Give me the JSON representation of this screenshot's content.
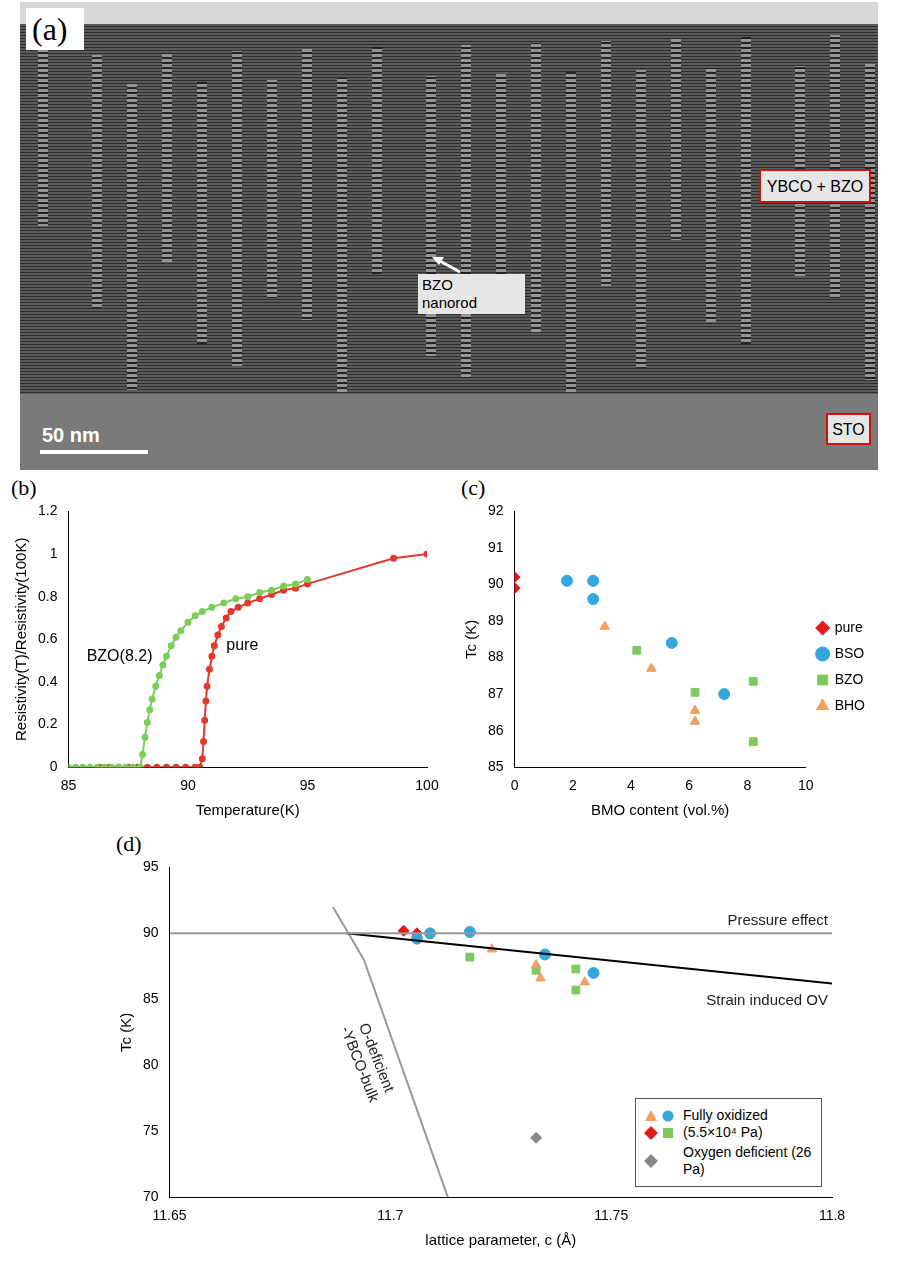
{
  "image_panel": {
    "title": "(a)",
    "film_label": "YBCO + BZO",
    "substrate_label": "STO",
    "arrow_label": "BZO nanorod",
    "scale_bar": "50 nm"
  },
  "chart_data": [
    {
      "type": "line",
      "title": "(b)",
      "x_label": "Temperature(K)",
      "y_label": "Resistivity(T)/Resistivity(100K)",
      "xlim": [
        85,
        100
      ],
      "xticks": [
        85,
        90,
        95,
        100
      ],
      "ylim": [
        0,
        1.2
      ],
      "yticks": [
        0,
        0.2,
        0.4,
        0.6,
        0.8,
        1,
        1.2
      ],
      "grid": false,
      "marker": "circle",
      "series": [
        {
          "name": "BZO(8.2)",
          "color": "#7ccd5c",
          "x": [
            85,
            85.3,
            85.6,
            85.9,
            86.2,
            86.5,
            86.8,
            87.1,
            87.4,
            87.7,
            88.0,
            88.1,
            88.2,
            88.3,
            88.4,
            88.5,
            88.65,
            88.8,
            88.95,
            89.1,
            89.3,
            89.5,
            89.7,
            90,
            90.3,
            90.6,
            91,
            91.5,
            92,
            92.5,
            93,
            93.5,
            94,
            94.5,
            95
          ],
          "values": [
            0,
            0,
            0,
            0,
            0,
            0,
            0,
            0,
            0,
            0,
            0,
            0.06,
            0.14,
            0.21,
            0.27,
            0.32,
            0.38,
            0.43,
            0.48,
            0.52,
            0.57,
            0.61,
            0.64,
            0.68,
            0.71,
            0.73,
            0.75,
            0.77,
            0.79,
            0.8,
            0.82,
            0.83,
            0.85,
            0.86,
            0.88
          ]
        },
        {
          "name": "pure",
          "color": "#e0392d",
          "x": [
            86.3,
            86.7,
            87.1,
            87.5,
            87.9,
            88.3,
            88.7,
            89.1,
            89.5,
            89.9,
            90.3,
            90.5,
            90.6,
            90.65,
            90.7,
            90.75,
            90.8,
            90.9,
            91.0,
            91.1,
            91.25,
            91.4,
            91.6,
            91.8,
            92.1,
            92.5,
            93,
            93.5,
            94,
            94.5,
            95,
            98.6,
            100
          ],
          "values": [
            0,
            0,
            0,
            0,
            0,
            0,
            0,
            0,
            0,
            0,
            0,
            0,
            0.04,
            0.12,
            0.22,
            0.31,
            0.38,
            0.46,
            0.52,
            0.57,
            0.62,
            0.66,
            0.7,
            0.73,
            0.75,
            0.77,
            0.79,
            0.81,
            0.83,
            0.84,
            0.86,
            0.98,
            1
          ]
        }
      ]
    },
    {
      "type": "scatter",
      "title": "(c)",
      "x_label": "BMO content (vol.%)",
      "y_label": "Tc (K)",
      "xlim": [
        0,
        10
      ],
      "xticks": [
        0,
        2,
        4,
        6,
        8,
        10
      ],
      "ylim": [
        85,
        92
      ],
      "yticks": [
        85,
        86,
        87,
        88,
        89,
        90,
        91,
        92
      ],
      "grid": false,
      "legend": "right",
      "series": [
        {
          "name": "pure",
          "color": "#e31a1c",
          "marker": "diamond",
          "x": [
            0,
            0
          ],
          "values": [
            90.2,
            89.9
          ]
        },
        {
          "name": "BSO",
          "color": "#35a7dd",
          "marker": "circle",
          "x": [
            1.8,
            2.7,
            2.7,
            5.4,
            7.2
          ],
          "values": [
            90.1,
            90.1,
            89.6,
            88.4,
            87.0
          ]
        },
        {
          "name": "BZO",
          "color": "#7dc95e",
          "marker": "square",
          "x": [
            4.2,
            6.2,
            8.2,
            8.2
          ],
          "values": [
            88.2,
            87.05,
            87.35,
            85.7
          ]
        },
        {
          "name": "BHO",
          "color": "#f0a060",
          "marker": "triangle",
          "x": [
            3.1,
            4.7,
            6.2,
            6.2
          ],
          "values": [
            88.85,
            87.7,
            86.55,
            86.25
          ]
        }
      ]
    },
    {
      "type": "scatter",
      "title": "(d)",
      "x_label": "lattice parameter, c (Å)",
      "y_label": "Tc (K)",
      "xlim": [
        11.65,
        11.8
      ],
      "xticks": [
        11.65,
        11.7,
        11.75,
        11.8
      ],
      "ylim": [
        70,
        95
      ],
      "yticks": [
        70,
        75,
        80,
        85,
        90,
        95
      ],
      "grid": false,
      "legend": "lower right",
      "series": [
        {
          "name": "Pressure effect",
          "type": "line",
          "color": "#999999",
          "line_style": "solid",
          "x": [
            11.65,
            11.8
          ],
          "values": [
            90,
            90
          ]
        },
        {
          "name": "Strain induced OV",
          "type": "line",
          "color": "#000000",
          "line_style": "solid",
          "x": [
            11.69,
            11.8
          ],
          "values": [
            90,
            86.2
          ]
        },
        {
          "name": "O-deficient -YBCO-bulk",
          "type": "line",
          "color": "#999999",
          "line_style": "solid",
          "x": [
            11.687,
            11.694,
            11.713
          ],
          "values": [
            92,
            88,
            70
          ]
        },
        {
          "name": "Fully oxidized (5.5×10⁴ Pa)",
          "color": "#f0a060",
          "marker": "triangle",
          "x": [
            11.723,
            11.733,
            11.734,
            11.744
          ],
          "values": [
            88.8,
            87.6,
            86.6,
            86.3
          ]
        },
        {
          "name": "Fully oxidized (5.5×10⁴ Pa)",
          "color": "#35a7dd",
          "marker": "circle",
          "x": [
            11.706,
            11.709,
            11.718,
            11.735,
            11.746
          ],
          "values": [
            89.6,
            90.0,
            90.1,
            88.4,
            87.0
          ]
        },
        {
          "name": "Fully oxidized (5.5×10⁴ Pa)",
          "color": "#e31a1c",
          "marker": "diamond",
          "x": [
            11.703,
            11.706
          ],
          "values": [
            90.2,
            90.0
          ]
        },
        {
          "name": "Fully oxidized (5.5×10⁴ Pa)",
          "color": "#7dc95e",
          "marker": "square",
          "x": [
            11.718,
            11.733,
            11.742,
            11.742
          ],
          "values": [
            88.2,
            87.2,
            87.3,
            85.7
          ]
        },
        {
          "name": "Oxygen deficient (26 Pa)",
          "color": "#888888",
          "marker": "diamond",
          "x": [
            11.733
          ],
          "values": [
            74.5
          ]
        }
      ]
    }
  ]
}
